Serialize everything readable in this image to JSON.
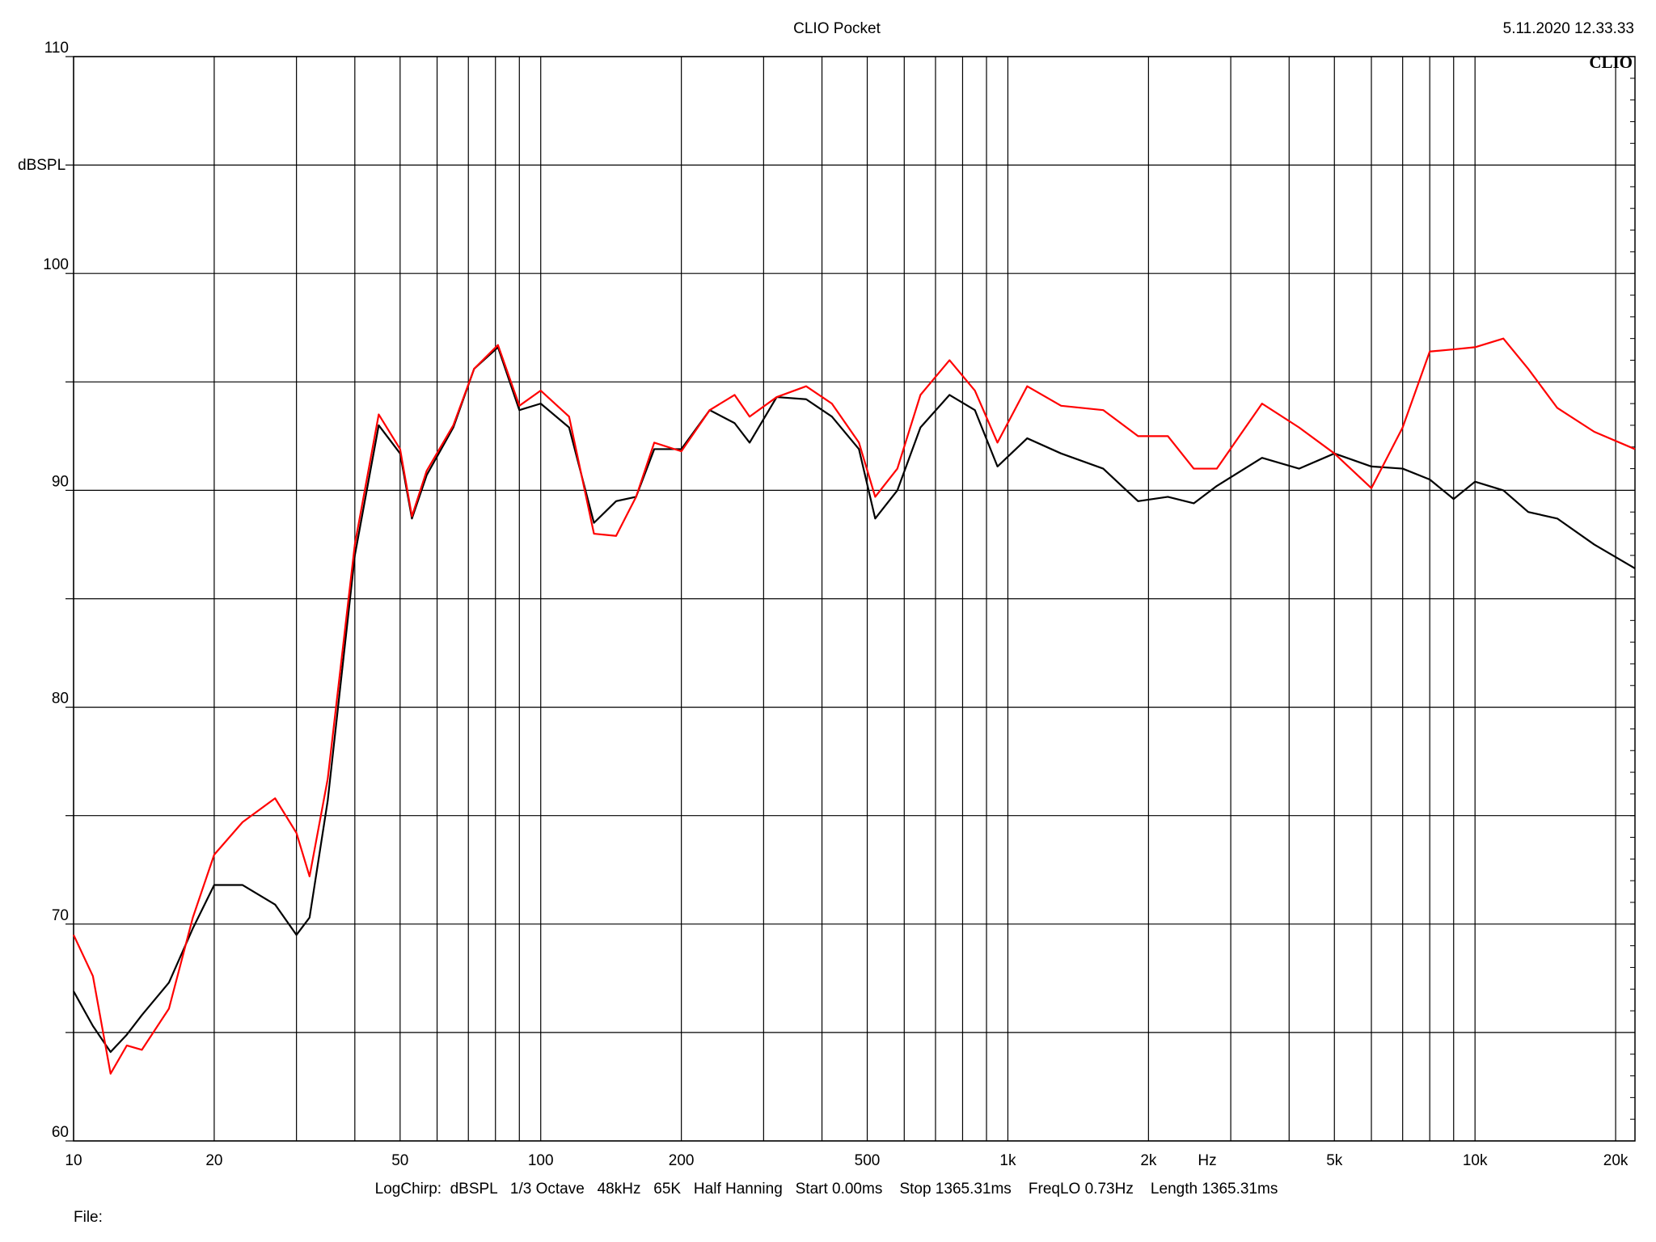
{
  "chart_data": {
    "type": "line",
    "title": "CLIO Pocket",
    "timestamp": "5.11.2020 12.33.33",
    "logo": "CLIO",
    "y_label": "dBSPL",
    "x_label": "Hz",
    "footer": "LogChirp:  dBSPL   1/3 Octave   48kHz   65K   Half Hanning   Start 0.00ms    Stop 1365.31ms    FreqLO 0.73Hz    Length 1365.31ms",
    "file_label": "File:",
    "x_log": true,
    "grid": true,
    "xlim": [
      10,
      22000
    ],
    "ylim": [
      60,
      110
    ],
    "xticks": [
      10,
      20,
      50,
      100,
      200,
      500,
      {
        "value": 1000,
        "label": "1k"
      },
      {
        "value": 2000,
        "label": "2k"
      },
      {
        "value": 5000,
        "label": "5k"
      },
      {
        "value": 10000,
        "label": "10k"
      },
      {
        "value": 20000,
        "label": "20k"
      }
    ],
    "x_minor_grid": [
      30,
      40,
      60,
      70,
      80,
      90,
      300,
      400,
      600,
      700,
      800,
      900,
      3000,
      4000,
      6000,
      7000,
      8000,
      9000
    ],
    "yticks": [
      60,
      70,
      80,
      90,
      100,
      110
    ],
    "y_minor_grid": [
      65,
      75,
      85,
      95,
      105
    ],
    "x": [
      10,
      11,
      12,
      13,
      14,
      16,
      18,
      20,
      23,
      27,
      30,
      32,
      35,
      40,
      45,
      50,
      53,
      57,
      65,
      72,
      81,
      90,
      100,
      115,
      130,
      145,
      160,
      175,
      200,
      230,
      260,
      280,
      320,
      370,
      420,
      480,
      520,
      580,
      650,
      750,
      850,
      950,
      1100,
      1300,
      1600,
      1900,
      2200,
      2500,
      2800,
      3500,
      4200,
      5000,
      6000,
      7000,
      8000,
      9000,
      10000,
      11500,
      13000,
      15000,
      18000,
      22000
    ],
    "series": [
      {
        "color": "#000000",
        "values": [
          66.9,
          65.3,
          64.1,
          64.9,
          65.8,
          67.3,
          69.8,
          71.8,
          71.8,
          70.9,
          69.5,
          70.3,
          75.7,
          87.0,
          93.0,
          91.7,
          88.7,
          90.7,
          92.9,
          95.6,
          96.6,
          93.7,
          94.0,
          92.9,
          88.5,
          89.5,
          89.7,
          91.9,
          91.9,
          93.7,
          93.1,
          92.2,
          94.3,
          94.2,
          93.4,
          91.9,
          88.7,
          90.0,
          92.9,
          94.4,
          93.7,
          91.1,
          92.4,
          91.7,
          91.0,
          89.5,
          89.7,
          89.4,
          90.2,
          91.5,
          91.0,
          91.7,
          91.1,
          91.0,
          90.5,
          89.6,
          90.4,
          90.0,
          89.0,
          88.7,
          87.5,
          86.4
        ]
      },
      {
        "color": "#ff0000",
        "values": [
          69.5,
          67.6,
          63.1,
          64.4,
          64.2,
          66.1,
          70.3,
          73.2,
          74.7,
          75.8,
          74.2,
          72.2,
          76.7,
          87.5,
          93.5,
          91.9,
          88.8,
          90.9,
          93.0,
          95.6,
          96.7,
          93.9,
          94.6,
          93.4,
          88.0,
          87.9,
          89.7,
          92.2,
          91.8,
          93.7,
          94.4,
          93.4,
          94.3,
          94.8,
          94.0,
          92.2,
          89.7,
          91.0,
          94.4,
          96.0,
          94.6,
          92.2,
          94.8,
          93.9,
          93.7,
          92.5,
          92.5,
          91.0,
          91.0,
          94.0,
          92.9,
          91.7,
          90.1,
          92.9,
          96.4,
          96.5,
          96.6,
          97.0,
          95.6,
          93.8,
          92.7,
          91.9
        ]
      }
    ]
  }
}
